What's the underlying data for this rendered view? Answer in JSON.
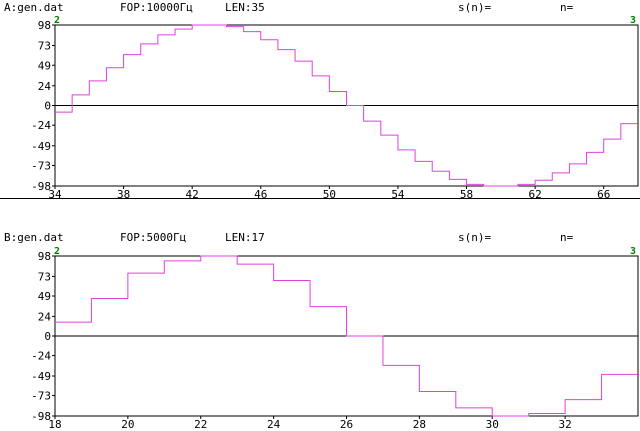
{
  "colors": {
    "signal": "#e040e0",
    "frame": "#000000",
    "channel": "#008000"
  },
  "panels": [
    {
      "header": {
        "file": "A:gen.dat",
        "fop": "FOP:10000Гц",
        "len": "LEN:35",
        "sn": "s(n)=",
        "n": "n="
      },
      "channel_left": "2",
      "channel_right": "3"
    },
    {
      "header": {
        "file": "B:gen.dat",
        "fop": "FOP:5000Гц",
        "len": "LEN:17",
        "sn": "s(n)=",
        "n": "n="
      },
      "channel_left": "2",
      "channel_right": "3"
    }
  ],
  "chart_data": [
    {
      "type": "line",
      "step": true,
      "xlim": [
        34,
        68
      ],
      "ylim": [
        -98,
        98
      ],
      "xticks": [
        34,
        38,
        42,
        46,
        50,
        54,
        58,
        62,
        66
      ],
      "yticks": [
        98,
        73,
        49,
        24,
        0,
        -24,
        -49,
        -73,
        -98
      ],
      "x": [
        34,
        35,
        36,
        37,
        38,
        39,
        40,
        41,
        42,
        43,
        44,
        45,
        46,
        47,
        48,
        49,
        50,
        51,
        52,
        53,
        54,
        55,
        56,
        57,
        58,
        59,
        60,
        61,
        62,
        63,
        64,
        65,
        66,
        67
      ],
      "values": [
        -8,
        13,
        30,
        46,
        62,
        75,
        86,
        93,
        98,
        98,
        96,
        90,
        80,
        68,
        54,
        36,
        17,
        0,
        -19,
        -36,
        -54,
        -68,
        -80,
        -90,
        -96,
        -98,
        -98,
        -96,
        -91,
        -82,
        -71,
        -57,
        -41,
        -22
      ]
    },
    {
      "type": "line",
      "step": true,
      "xlim": [
        18,
        34
      ],
      "ylim": [
        -98,
        98
      ],
      "xticks": [
        18,
        20,
        22,
        24,
        26,
        28,
        30,
        32
      ],
      "yticks": [
        98,
        73,
        49,
        24,
        0,
        -24,
        -49,
        -73,
        -98
      ],
      "x": [
        18,
        19,
        20,
        21,
        22,
        23,
        24,
        25,
        26,
        27,
        28,
        29,
        30,
        31,
        32,
        33
      ],
      "values": [
        17,
        46,
        77,
        92,
        98,
        88,
        68,
        36,
        0,
        -36,
        -68,
        -88,
        -98,
        -95,
        -78,
        -47
      ]
    }
  ]
}
